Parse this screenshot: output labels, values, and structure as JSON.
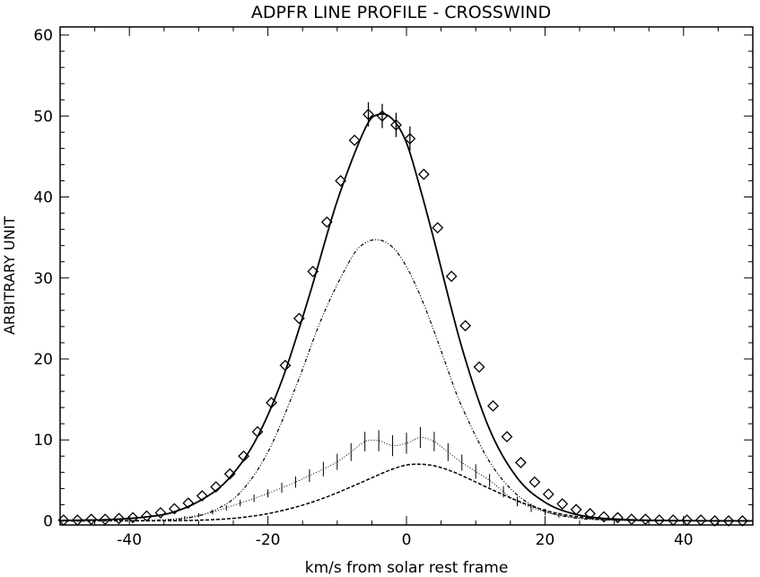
{
  "chart_data": {
    "type": "line",
    "title": "ADPFR LINE PROFILE - CROSSWIND",
    "xlabel": "km/s from solar rest frame",
    "ylabel": "ARBITRARY UNIT",
    "xlim": [
      -50,
      50
    ],
    "ylim": [
      -0.5,
      61
    ],
    "x_ticks": [
      -40,
      -20,
      0,
      20,
      40
    ],
    "x_tick_labels": [
      "-40",
      "-20",
      "0",
      "20",
      "40"
    ],
    "y_ticks": [
      0,
      10,
      20,
      30,
      40,
      50,
      60
    ],
    "y_tick_labels": [
      "0",
      "10",
      "20",
      "30",
      "40",
      "50",
      "60"
    ],
    "grid": false,
    "series": [
      {
        "style": "solid",
        "x": [
          -50,
          -46,
          -42,
          -38,
          -34,
          -30,
          -26,
          -22,
          -18,
          -14,
          -10,
          -6,
          -4,
          -2,
          0,
          2,
          4,
          8,
          12,
          16,
          20,
          24,
          28,
          32,
          36,
          40,
          44,
          50
        ],
        "y": [
          0.05,
          0.1,
          0.2,
          0.45,
          1.0,
          2.4,
          4.9,
          9.6,
          17.3,
          27.9,
          39.5,
          48.4,
          50.2,
          49.6,
          46.7,
          41.0,
          34.6,
          21.4,
          11.3,
          5.3,
          2.3,
          0.9,
          0.35,
          0.15,
          0.06,
          0.03,
          0.01,
          0
        ]
      },
      {
        "style": "markers-diamond",
        "x": [
          -49.5,
          -47.5,
          -45.5,
          -43.5,
          -41.5,
          -39.5,
          -37.5,
          -35.5,
          -33.5,
          -31.5,
          -29.5,
          -27.5,
          -25.5,
          -23.5,
          -21.5,
          -19.5,
          -17.5,
          -15.5,
          -13.5,
          -11.5,
          -9.5,
          -7.5,
          -5.5,
          -3.5,
          -1.5,
          0.5,
          2.5,
          4.5,
          6.5,
          8.5,
          10.5,
          12.5,
          14.5,
          16.5,
          18.5,
          20.5,
          22.5,
          24.5,
          26.5,
          28.5,
          30.5,
          32.5,
          34.5,
          36.5,
          38.5,
          40.5,
          42.5,
          44.5,
          46.5,
          48.5
        ],
        "y": [
          0.1,
          0.1,
          0.2,
          0.2,
          0.3,
          0.4,
          0.6,
          1.0,
          1.5,
          2.2,
          3.1,
          4.2,
          5.8,
          8.0,
          11.0,
          14.6,
          19.2,
          25.0,
          30.8,
          36.9,
          42.0,
          47.0,
          50.2,
          50.0,
          48.9,
          47.2,
          42.8,
          36.2,
          30.2,
          24.1,
          19.0,
          14.2,
          10.4,
          7.2,
          4.8,
          3.3,
          2.1,
          1.4,
          0.9,
          0.5,
          0.4,
          0.2,
          0.2,
          0.1,
          0.1,
          0.1,
          0.1,
          0.0,
          0.0,
          0.0
        ],
        "error": [
          0,
          0,
          0,
          0,
          0,
          0,
          0,
          0,
          0,
          0,
          0,
          0,
          0,
          0,
          0,
          0,
          0,
          0,
          0,
          0,
          0,
          0,
          1.5,
          1.5,
          1.5,
          1.5,
          0,
          0,
          0,
          0,
          0,
          0,
          0,
          0,
          0,
          0,
          0,
          0,
          0,
          0,
          0,
          0,
          0,
          0,
          0,
          0,
          0,
          0,
          0,
          0
        ]
      },
      {
        "style": "dash-dot-dot",
        "x": [
          -50,
          -40,
          -36,
          -32,
          -28,
          -24,
          -20,
          -16,
          -12,
          -8,
          -6,
          -4,
          -2,
          0,
          2,
          4,
          6,
          8,
          12,
          16,
          20,
          24,
          28,
          32,
          36,
          40,
          50
        ],
        "y": [
          0,
          0.05,
          0.1,
          0.3,
          1.2,
          3.5,
          8.5,
          16.5,
          25.5,
          32.4,
          34.3,
          34.7,
          33.8,
          31.4,
          27.8,
          23.4,
          18.6,
          14.1,
          7.3,
          3.2,
          1.2,
          0.4,
          0.15,
          0.05,
          0.02,
          0.01,
          0
        ]
      },
      {
        "style": "dotted-errorbars",
        "x": [
          -50,
          -40,
          -36,
          -32,
          -28,
          -24,
          -20,
          -16,
          -14,
          -12,
          -10,
          -8,
          -6,
          -4,
          -2,
          0,
          2,
          4,
          6,
          8,
          10,
          12,
          14,
          16,
          20,
          24,
          28,
          32,
          36,
          40,
          50
        ],
        "y": [
          0,
          0.02,
          0.1,
          0.4,
          1.1,
          2.2,
          3.4,
          4.8,
          5.6,
          6.4,
          7.3,
          8.5,
          9.8,
          9.9,
          9.3,
          9.6,
          10.3,
          9.8,
          8.5,
          7.2,
          6.1,
          5.0,
          3.6,
          2.4,
          1.1,
          0.45,
          0.15,
          0.05,
          0.02,
          0.01,
          0
        ],
        "errorbar_x": [
          -32,
          -30,
          -28,
          -26,
          -24,
          -22,
          -20,
          -18,
          -16,
          -14,
          -12,
          -10,
          -8,
          -6,
          -4,
          -2,
          0,
          2,
          4,
          6,
          8,
          10,
          12,
          14,
          16,
          18,
          20,
          22
        ],
        "errorbar_y": [
          0.4,
          0.7,
          1.1,
          1.6,
          2.2,
          2.8,
          3.4,
          4.1,
          4.8,
          5.6,
          6.4,
          7.3,
          8.5,
          9.8,
          9.9,
          9.3,
          9.6,
          10.3,
          9.8,
          8.5,
          7.2,
          6.1,
          5.0,
          3.6,
          2.4,
          1.6,
          1.1,
          0.7
        ],
        "errorbar_half": [
          0.2,
          0.25,
          0.3,
          0.35,
          0.4,
          0.45,
          0.5,
          0.6,
          0.7,
          0.8,
          0.9,
          1.0,
          1.1,
          1.2,
          1.3,
          1.3,
          1.3,
          1.3,
          1.2,
          1.1,
          1.0,
          0.9,
          0.8,
          0.7,
          0.6,
          0.5,
          0.4,
          0.3
        ]
      },
      {
        "style": "dashed",
        "x": [
          -50,
          -36,
          -32,
          -28,
          -24,
          -20,
          -16,
          -12,
          -8,
          -4,
          -2,
          0,
          2,
          4,
          6,
          8,
          12,
          16,
          20,
          24,
          28,
          32,
          36,
          40,
          50
        ],
        "y": [
          0,
          0.02,
          0.05,
          0.15,
          0.4,
          0.9,
          1.7,
          2.8,
          4.2,
          5.7,
          6.4,
          6.9,
          7.0,
          6.8,
          6.3,
          5.6,
          4.0,
          2.5,
          1.3,
          0.6,
          0.25,
          0.1,
          0.04,
          0.01,
          0
        ]
      }
    ]
  }
}
